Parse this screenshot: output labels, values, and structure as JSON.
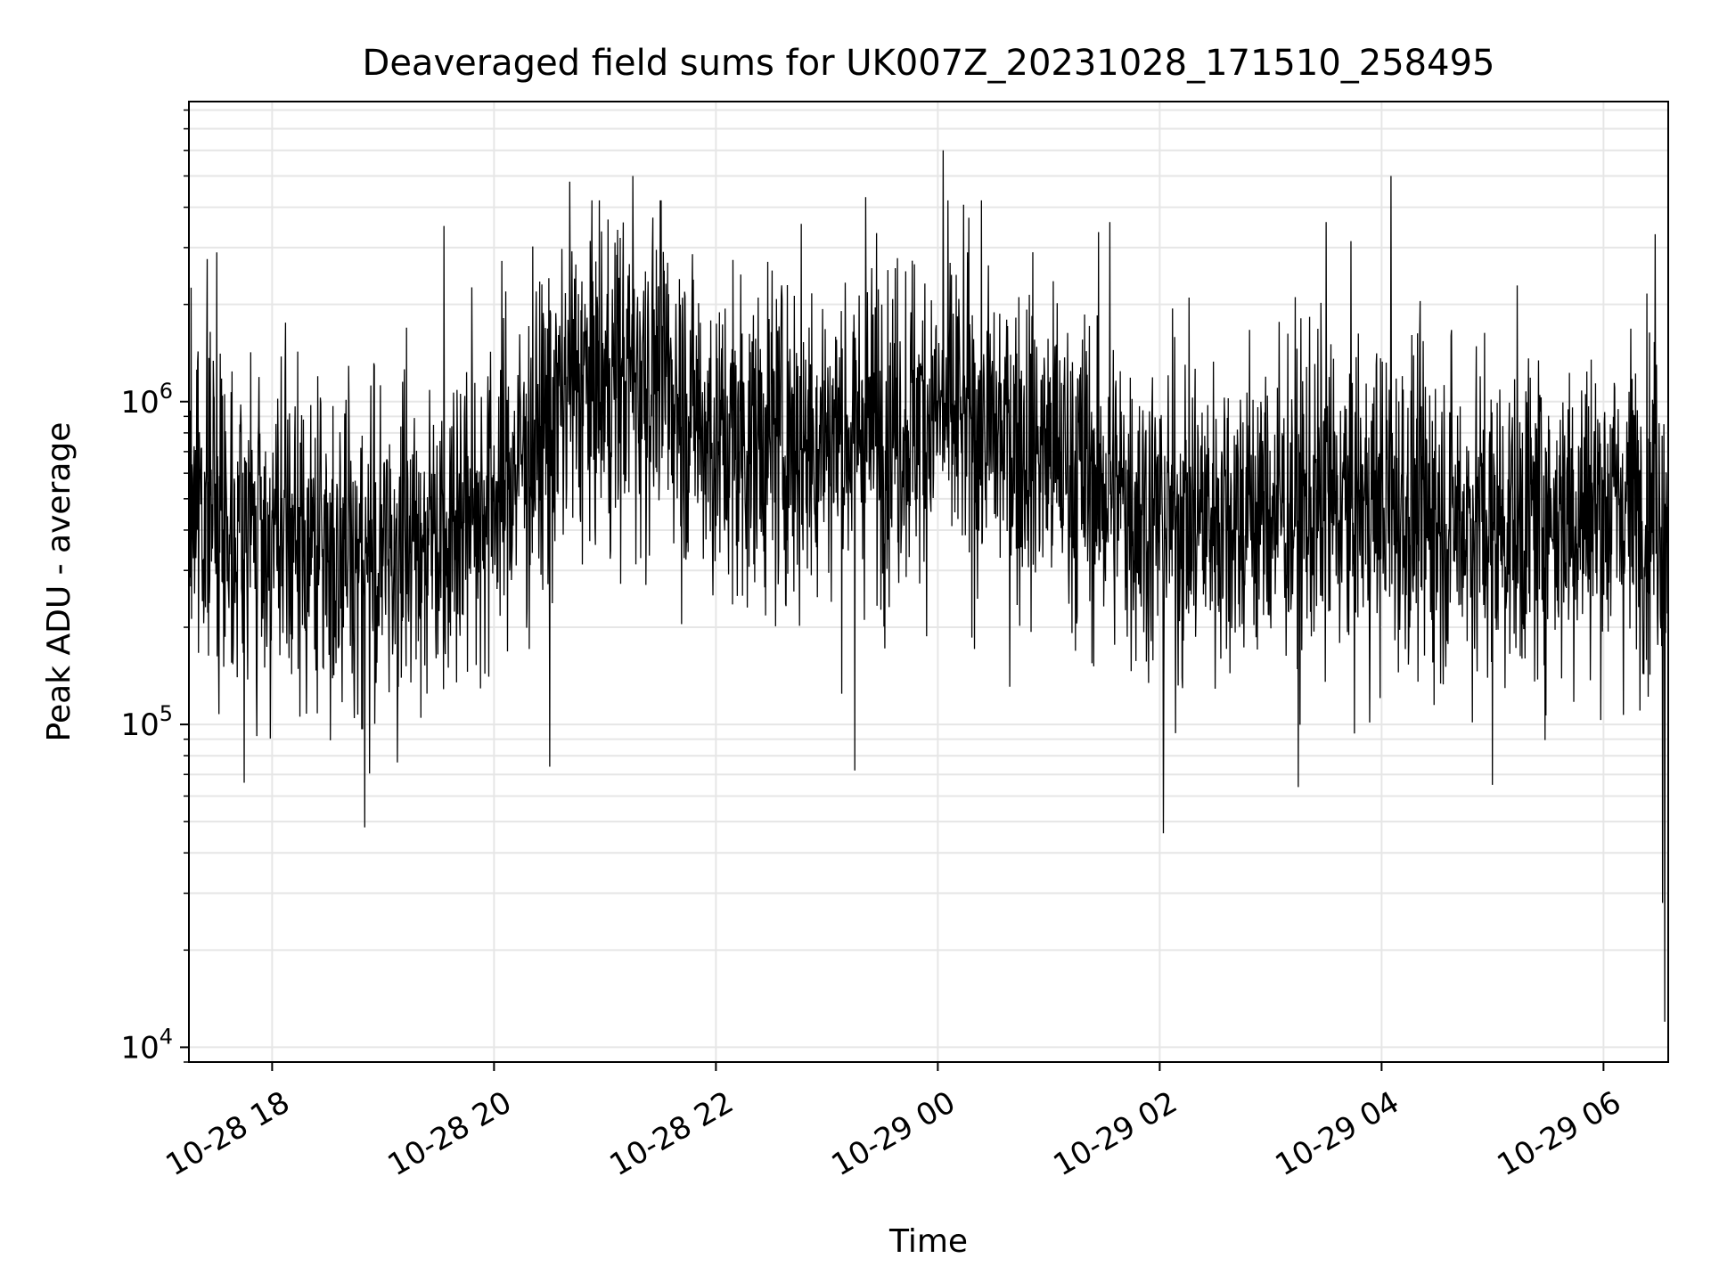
{
  "chart_data": {
    "type": "line",
    "title": "Deaveraged field sums for UK007Z_20231028_171510_258495",
    "xlabel": "Time",
    "ylabel": "Peak ADU - average",
    "yscale": "log",
    "ylim": [
      9000,
      8500000
    ],
    "xlim": [
      "2023-10-28 17:15",
      "2023-10-29 06:35"
    ],
    "grid": true,
    "x_ticks": [
      {
        "t": "2023-10-28 18:00",
        "label": "10-28 18"
      },
      {
        "t": "2023-10-28 20:00",
        "label": "10-28 20"
      },
      {
        "t": "2023-10-28 22:00",
        "label": "10-28 22"
      },
      {
        "t": "2023-10-29 00:00",
        "label": "10-29 00"
      },
      {
        "t": "2023-10-29 02:00",
        "label": "10-29 02"
      },
      {
        "t": "2023-10-29 04:00",
        "label": "10-29 04"
      },
      {
        "t": "2023-10-29 06:00",
        "label": "10-29 06"
      }
    ],
    "y_ticks": [
      {
        "v": 10000,
        "base": "10",
        "exp": "4"
      },
      {
        "v": 100000,
        "base": "10",
        "exp": "5"
      },
      {
        "v": 1000000,
        "base": "10",
        "exp": "6"
      }
    ],
    "series": [
      {
        "color": "#000000",
        "time_start": "2023-10-28 17:15",
        "time_end": "2023-10-29 06:35",
        "baseline": [
          [
            "2023-10-28 17:15",
            550000
          ],
          [
            "2023-10-28 18:00",
            370000
          ],
          [
            "2023-10-28 19:00",
            330000
          ],
          [
            "2023-10-28 20:00",
            520000
          ],
          [
            "2023-10-28 20:45",
            1100000
          ],
          [
            "2023-10-28 21:30",
            1250000
          ],
          [
            "2023-10-28 22:00",
            750000
          ],
          [
            "2023-10-28 23:00",
            780000
          ],
          [
            "2023-10-29 00:00",
            920000
          ],
          [
            "2023-10-29 01:00",
            700000
          ],
          [
            "2023-10-29 02:00",
            430000
          ],
          [
            "2023-10-29 03:00",
            470000
          ],
          [
            "2023-10-29 04:00",
            480000
          ],
          [
            "2023-10-29 05:00",
            420000
          ],
          [
            "2023-10-29 06:00",
            480000
          ],
          [
            "2023-10-29 06:30",
            500000
          ]
        ],
        "spikes": [
          [
            "2023-10-28 21:15",
            5000000
          ],
          [
            "2023-10-28 20:41",
            4800000
          ],
          [
            "2023-10-29 00:03",
            6000000
          ],
          [
            "2023-10-29 04:05",
            5000000
          ],
          [
            "2023-10-28 19:33",
            3500000
          ],
          [
            "2023-10-28 23:21",
            4300000
          ],
          [
            "2023-10-29 01:33",
            3600000
          ],
          [
            "2023-10-29 03:30",
            3600000
          ],
          [
            "2023-10-28 17:30",
            2900000
          ],
          [
            "2023-10-28 18:50",
            48000
          ],
          [
            "2023-10-29 02:02",
            46000
          ],
          [
            "2023-10-28 17:45",
            66000
          ],
          [
            "2023-10-28 20:30",
            74000
          ],
          [
            "2023-10-28 23:15",
            72000
          ],
          [
            "2023-10-29 03:15",
            64000
          ],
          [
            "2023-10-29 05:00",
            65000
          ],
          [
            "2023-10-29 06:33",
            12000
          ],
          [
            "2023-10-29 06:32",
            28000
          ],
          [
            "2023-10-29 06:28",
            3300000
          ]
        ]
      }
    ]
  }
}
